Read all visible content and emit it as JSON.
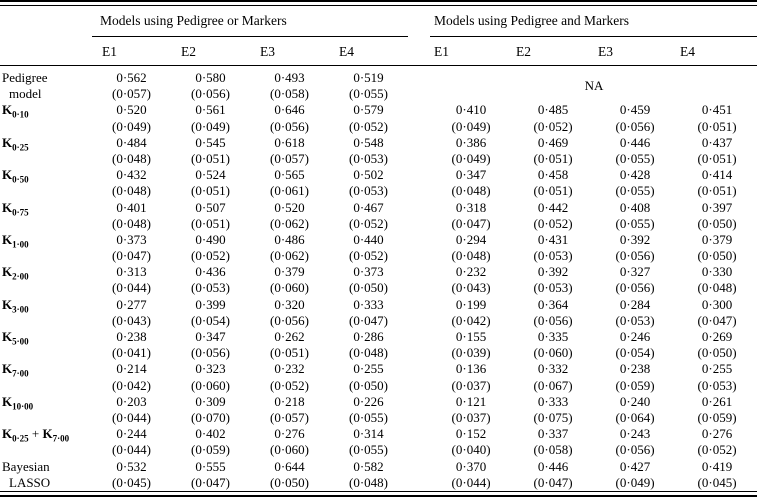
{
  "table": {
    "group_headers": [
      "Models using Pedigree or Markers",
      "Models using Pedigree and Markers"
    ],
    "env_headers": [
      "E1",
      "E2",
      "E3",
      "E4"
    ],
    "na_text": "NA",
    "rows": [
      {
        "label_lines": [
          [
            {
              "t": "Pedigree"
            }
          ],
          [
            {
              "t": "model"
            }
          ]
        ],
        "left": [
          [
            "0·562",
            "(0·057)"
          ],
          [
            "0·580",
            "(0·056)"
          ],
          [
            "0·493",
            "(0·058)"
          ],
          [
            "0·519",
            "(0·055)"
          ]
        ],
        "right_na": true
      },
      {
        "label_lines": [
          [
            {
              "t": "K",
              "b": true
            },
            {
              "t": "0·10",
              "b": true,
              "sub": true
            }
          ]
        ],
        "left": [
          [
            "0·520",
            "(0·049)"
          ],
          [
            "0·561",
            "(0·049)"
          ],
          [
            "0·646",
            "(0·056)"
          ],
          [
            "0·579",
            "(0·052)"
          ]
        ],
        "right": [
          [
            "0·410",
            "(0·049)"
          ],
          [
            "0·485",
            "(0·052)"
          ],
          [
            "0·459",
            "(0·056)"
          ],
          [
            "0·451",
            "(0·051)"
          ]
        ]
      },
      {
        "label_lines": [
          [
            {
              "t": "K",
              "b": true
            },
            {
              "t": "0·25",
              "b": true,
              "sub": true
            }
          ]
        ],
        "left": [
          [
            "0·484",
            "(0·048)"
          ],
          [
            "0·545",
            "(0·051)"
          ],
          [
            "0·618",
            "(0·057)"
          ],
          [
            "0·548",
            "(0·053)"
          ]
        ],
        "right": [
          [
            "0·386",
            "(0·049)"
          ],
          [
            "0·469",
            "(0·051)"
          ],
          [
            "0·446",
            "(0·055)"
          ],
          [
            "0·437",
            "(0·051)"
          ]
        ]
      },
      {
        "label_lines": [
          [
            {
              "t": "K",
              "b": true
            },
            {
              "t": "0·50",
              "b": true,
              "sub": true
            }
          ]
        ],
        "left": [
          [
            "0·432",
            "(0·048)"
          ],
          [
            "0·524",
            "(0·051)"
          ],
          [
            "0·565",
            "(0·061)"
          ],
          [
            "0·502",
            "(0·053)"
          ]
        ],
        "right": [
          [
            "0·347",
            "(0·048)"
          ],
          [
            "0·458",
            "(0·051)"
          ],
          [
            "0·428",
            "(0·055)"
          ],
          [
            "0·414",
            "(0·051)"
          ]
        ]
      },
      {
        "label_lines": [
          [
            {
              "t": "K",
              "b": true
            },
            {
              "t": "0·75",
              "b": true,
              "sub": true
            }
          ]
        ],
        "left": [
          [
            "0·401",
            "(0·048)"
          ],
          [
            "0·507",
            "(0·051)"
          ],
          [
            "0·520",
            "(0·062)"
          ],
          [
            "0·467",
            "(0·052)"
          ]
        ],
        "right": [
          [
            "0·318",
            "(0·047)"
          ],
          [
            "0·442",
            "(0·052)"
          ],
          [
            "0·408",
            "(0·055)"
          ],
          [
            "0·397",
            "(0·050)"
          ]
        ]
      },
      {
        "label_lines": [
          [
            {
              "t": "K",
              "b": true
            },
            {
              "t": "1·00",
              "b": true,
              "sub": true
            }
          ]
        ],
        "left": [
          [
            "0·373",
            "(0·047)"
          ],
          [
            "0·490",
            "(0·052)"
          ],
          [
            "0·486",
            "(0·062)"
          ],
          [
            "0·440",
            "(0·052)"
          ]
        ],
        "right": [
          [
            "0·294",
            "(0·048)"
          ],
          [
            "0·431",
            "(0·053)"
          ],
          [
            "0·392",
            "(0·056)"
          ],
          [
            "0·379",
            "(0·050)"
          ]
        ]
      },
      {
        "label_lines": [
          [
            {
              "t": "K",
              "b": true
            },
            {
              "t": "2·00",
              "b": true,
              "sub": true
            }
          ]
        ],
        "left": [
          [
            "0·313",
            "(0·044)"
          ],
          [
            "0·436",
            "(0·053)"
          ],
          [
            "0·379",
            "(0·060)"
          ],
          [
            "0·373",
            "(0·050)"
          ]
        ],
        "right": [
          [
            "0·232",
            "(0·043)"
          ],
          [
            "0·392",
            "(0·053)"
          ],
          [
            "0·327",
            "(0·056)"
          ],
          [
            "0·330",
            "(0·048)"
          ]
        ]
      },
      {
        "label_lines": [
          [
            {
              "t": "K",
              "b": true
            },
            {
              "t": "3·00",
              "b": true,
              "sub": true
            }
          ]
        ],
        "left": [
          [
            "0·277",
            "(0·043)"
          ],
          [
            "0·399",
            "(0·054)"
          ],
          [
            "0·320",
            "(0·056)"
          ],
          [
            "0·333",
            "(0·047)"
          ]
        ],
        "right": [
          [
            "0·199",
            "(0·042)"
          ],
          [
            "0·364",
            "(0·056)"
          ],
          [
            "0·284",
            "(0·053)"
          ],
          [
            "0·300",
            "(0·047)"
          ]
        ]
      },
      {
        "label_lines": [
          [
            {
              "t": "K",
              "b": true
            },
            {
              "t": "5·00",
              "b": true,
              "sub": true
            }
          ]
        ],
        "left": [
          [
            "0·238",
            "(0·041)"
          ],
          [
            "0·347",
            "(0·056)"
          ],
          [
            "0·262",
            "(0·051)"
          ],
          [
            "0·286",
            "(0·048)"
          ]
        ],
        "right": [
          [
            "0·155",
            "(0·039)"
          ],
          [
            "0·335",
            "(0·060)"
          ],
          [
            "0·246",
            "(0·054)"
          ],
          [
            "0·269",
            "(0·050)"
          ]
        ]
      },
      {
        "label_lines": [
          [
            {
              "t": "K",
              "b": true
            },
            {
              "t": "7·00",
              "b": true,
              "sub": true
            }
          ]
        ],
        "left": [
          [
            "0·214",
            "(0·042)"
          ],
          [
            "0·323",
            "(0·060)"
          ],
          [
            "0·232",
            "(0·052)"
          ],
          [
            "0·255",
            "(0·050)"
          ]
        ],
        "right": [
          [
            "0·136",
            "(0·037)"
          ],
          [
            "0·332",
            "(0·067)"
          ],
          [
            "0·238",
            "(0·059)"
          ],
          [
            "0·255",
            "(0·053)"
          ]
        ]
      },
      {
        "label_lines": [
          [
            {
              "t": "K",
              "b": true
            },
            {
              "t": "10·00",
              "b": true,
              "sub": true
            }
          ]
        ],
        "left": [
          [
            "0·203",
            "(0·044)"
          ],
          [
            "0·309",
            "(0·070)"
          ],
          [
            "0·218",
            "(0·057)"
          ],
          [
            "0·226",
            "(0·055)"
          ]
        ],
        "right": [
          [
            "0·121",
            "(0·037)"
          ],
          [
            "0·333",
            "(0·075)"
          ],
          [
            "0·240",
            "(0·064)"
          ],
          [
            "0·261",
            "(0·059)"
          ]
        ]
      },
      {
        "label_lines": [
          [
            {
              "t": "K",
              "b": true
            },
            {
              "t": "0·25",
              "b": true,
              "sub": true
            },
            {
              "t": " + "
            },
            {
              "t": "K",
              "b": true
            },
            {
              "t": "7·00",
              "b": true,
              "sub": true
            }
          ]
        ],
        "left": [
          [
            "0·244",
            "(0·044)"
          ],
          [
            "0·402",
            "(0·059)"
          ],
          [
            "0·276",
            "(0·060)"
          ],
          [
            "0·314",
            "(0·055)"
          ]
        ],
        "right": [
          [
            "0·152",
            "(0·040)"
          ],
          [
            "0·337",
            "(0·058)"
          ],
          [
            "0·243",
            "(0·056)"
          ],
          [
            "0·276",
            "(0·052)"
          ]
        ]
      },
      {
        "label_lines": [
          [
            {
              "t": "Bayesian"
            }
          ],
          [
            {
              "t": "LASSO"
            }
          ]
        ],
        "left": [
          [
            "0·532",
            "(0·045)"
          ],
          [
            "0·555",
            "(0·047)"
          ],
          [
            "0·644",
            "(0·050)"
          ],
          [
            "0·582",
            "(0·048)"
          ]
        ],
        "right": [
          [
            "0·370",
            "(0·044)"
          ],
          [
            "0·446",
            "(0·047)"
          ],
          [
            "0·427",
            "(0·049)"
          ],
          [
            "0·419",
            "(0·045)"
          ]
        ]
      }
    ]
  }
}
